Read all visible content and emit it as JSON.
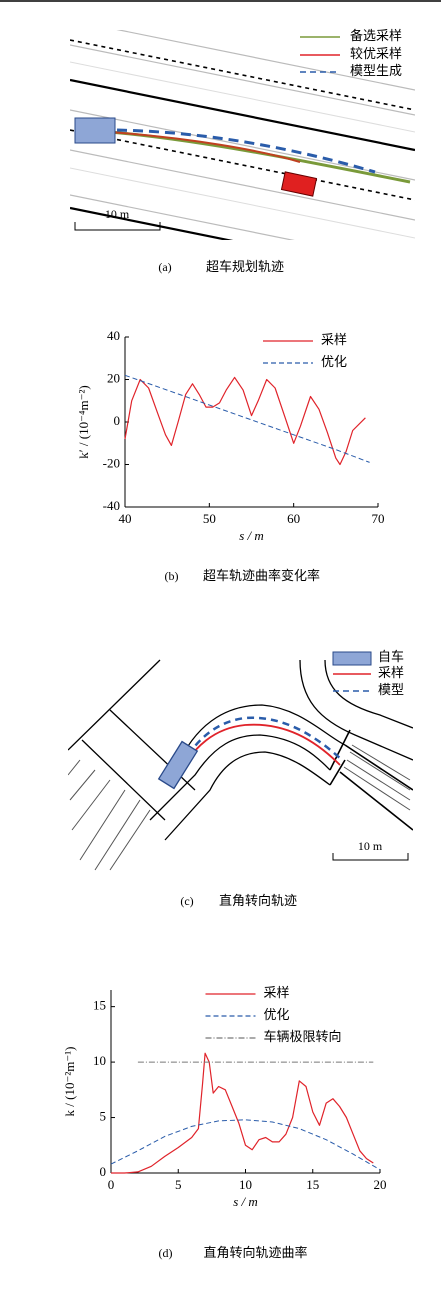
{
  "diagram_a": {
    "legend": [
      "备选采样",
      "较优采样",
      "模型生成"
    ],
    "scale": "10 m",
    "label": "(a)",
    "caption": "超车规划轨迹"
  },
  "chart_data": [
    {
      "type": "line",
      "label": "(b)",
      "caption": "超车轨迹曲率变化率",
      "xlabel": "s / m",
      "ylabel": "k′ / (10⁻⁴m⁻²)",
      "xlim": [
        40,
        70
      ],
      "xticks": [
        40,
        50,
        60,
        70
      ],
      "ylim": [
        -40,
        40
      ],
      "yticks": [
        -40,
        -20,
        0,
        20,
        40
      ],
      "legend": "upper right",
      "series": [
        {
          "name": "采样",
          "color": "#e0232a",
          "dash": "solid",
          "x": [
            40,
            40.8,
            41.8,
            42.8,
            43.8,
            44.8,
            45.5,
            46.3,
            47.2,
            48,
            48.8,
            49.6,
            50.4,
            51.2,
            52,
            53,
            54,
            55,
            55.8,
            56.8,
            57.8,
            59,
            60,
            60.8,
            62,
            63,
            64,
            65,
            65.5,
            66.2,
            67,
            68.5
          ],
          "values": [
            -8,
            10,
            20,
            16,
            5,
            -6,
            -11,
            0,
            13,
            18,
            13,
            7,
            7,
            9,
            15,
            21,
            15,
            3,
            10,
            20,
            16,
            2,
            -10,
            -2,
            12,
            6,
            -5,
            -17,
            -20,
            -14,
            -4,
            2
          ]
        },
        {
          "name": "优化",
          "color": "#2a5caa",
          "dash": "dashed",
          "x": [
            40,
            45,
            50,
            55,
            60,
            65,
            69
          ],
          "values": [
            22,
            15,
            8,
            1,
            -6,
            -13,
            -19
          ]
        }
      ]
    },
    {
      "type": "line",
      "label": "(d)",
      "caption": "直角转向轨迹曲率",
      "xlabel": "s / m",
      "ylabel": "k / (10⁻²m⁻¹)",
      "xlim": [
        0,
        20
      ],
      "xticks": [
        0,
        5,
        10,
        15,
        20
      ],
      "ylim": [
        0,
        16.5
      ],
      "yticks": [
        0,
        5,
        10,
        15
      ],
      "legend": "upper center",
      "series": [
        {
          "name": "采样",
          "color": "#e0232a",
          "dash": "solid",
          "x": [
            0,
            1,
            2,
            3,
            4,
            5,
            6,
            6.5,
            6.8,
            7,
            7.3,
            7.6,
            8,
            8.5,
            9,
            9.5,
            10,
            10.5,
            11,
            11.5,
            12,
            12.5,
            13,
            13.5,
            14,
            14.5,
            15,
            15.5,
            16,
            16.5,
            17,
            17.5,
            18,
            18.5,
            19,
            19.5
          ],
          "values": [
            0,
            0,
            0.1,
            0.6,
            1.5,
            2.3,
            3.2,
            4,
            8,
            10.8,
            10,
            7.2,
            7.8,
            7.5,
            6,
            4.5,
            2.5,
            2.1,
            3,
            3.2,
            2.8,
            2.8,
            3.5,
            5,
            8.3,
            7.8,
            5.5,
            4.3,
            6.3,
            6.7,
            6,
            5,
            3.5,
            2,
            1.3,
            0.9
          ]
        },
        {
          "name": "优化",
          "color": "#2a5caa",
          "dash": "dashed",
          "x": [
            0,
            2,
            4,
            6,
            8,
            10,
            12,
            14,
            16,
            18,
            20
          ],
          "values": [
            0.8,
            2,
            3.3,
            4.2,
            4.7,
            4.8,
            4.6,
            4,
            3,
            1.7,
            0.3
          ]
        },
        {
          "name": "车辆极限转向",
          "color": "#777777",
          "dash": "dashdot",
          "x": [
            2,
            19.5
          ],
          "values": [
            10,
            10
          ]
        }
      ]
    }
  ],
  "diagram_c": {
    "legend": [
      "自车",
      "采样",
      "模型"
    ],
    "scale": "10 m",
    "label": "(c)",
    "caption": "直角转向轨迹"
  }
}
